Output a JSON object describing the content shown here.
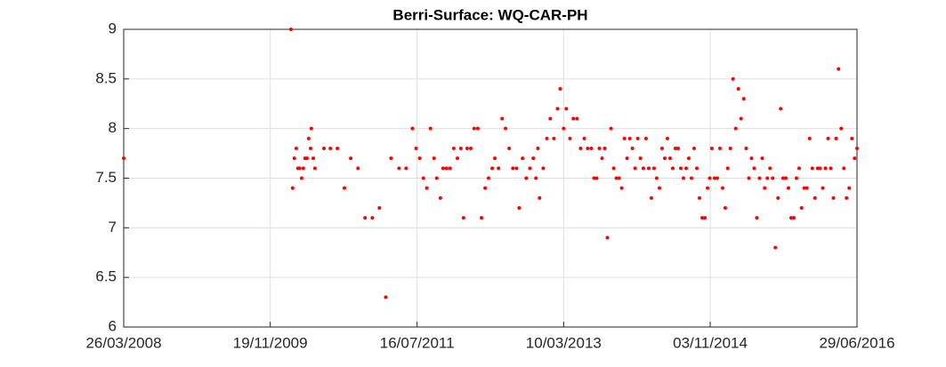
{
  "chart_data": {
    "type": "scatter",
    "title": "Berri-Surface: WQ-CAR-PH",
    "color": "#ff0000",
    "grid": true,
    "x": [
      "2008-03-26",
      "2010-02-12",
      "2010-02-19",
      "2010-02-26",
      "2010-03-06",
      "2010-03-13",
      "2010-03-20",
      "2010-03-28",
      "2010-04-04",
      "2010-04-11",
      "2010-04-19",
      "2010-04-26",
      "2010-05-04",
      "2010-05-07",
      "2010-05-15",
      "2010-05-22",
      "2010-06-28",
      "2010-07-24",
      "2010-08-22",
      "2010-09-20",
      "2010-10-16",
      "2010-11-15",
      "2010-12-14",
      "2011-01-13",
      "2011-02-11",
      "2011-03-09",
      "2011-03-31",
      "2011-05-03",
      "2011-06-01",
      "2011-06-27",
      "2011-07-12",
      "2011-07-27",
      "2011-08-11",
      "2011-08-25",
      "2011-09-09",
      "2011-09-24",
      "2011-10-05",
      "2011-10-20",
      "2011-10-31",
      "2011-11-14",
      "2011-11-29",
      "2011-12-14",
      "2011-12-29",
      "2012-01-12",
      "2012-01-23",
      "2012-02-07",
      "2012-02-22",
      "2012-03-07",
      "2012-03-22",
      "2012-04-06",
      "2012-04-21",
      "2012-05-05",
      "2012-05-20",
      "2012-05-31",
      "2012-06-15",
      "2012-06-30",
      "2012-07-14",
      "2012-07-29",
      "2012-08-13",
      "2012-08-28",
      "2012-09-08",
      "2012-09-22",
      "2012-10-07",
      "2012-10-22",
      "2012-11-05",
      "2012-11-16",
      "2012-11-24",
      "2012-12-01",
      "2012-12-16",
      "2012-12-31",
      "2013-01-14",
      "2013-01-29",
      "2013-02-13",
      "2013-02-24",
      "2013-03-10",
      "2013-03-21",
      "2013-04-05",
      "2013-04-19",
      "2013-05-04",
      "2013-05-19",
      "2013-06-03",
      "2013-06-17",
      "2013-07-02",
      "2013-07-13",
      "2013-07-24",
      "2013-08-04",
      "2013-08-15",
      "2013-08-26",
      "2013-09-06",
      "2013-09-21",
      "2013-10-02",
      "2013-10-13",
      "2013-10-24",
      "2013-11-04",
      "2013-11-15",
      "2013-11-26",
      "2013-12-07",
      "2013-12-18",
      "2013-12-29",
      "2014-01-09",
      "2014-01-20",
      "2014-02-01",
      "2014-02-12",
      "2014-02-23",
      "2014-03-06",
      "2014-03-17",
      "2014-03-28",
      "2014-04-08",
      "2014-04-19",
      "2014-04-30",
      "2014-05-11",
      "2014-05-22",
      "2014-06-02",
      "2014-06-13",
      "2014-06-24",
      "2014-07-05",
      "2014-07-16",
      "2014-07-27",
      "2014-08-07",
      "2014-08-18",
      "2014-08-29",
      "2014-09-09",
      "2014-09-20",
      "2014-10-01",
      "2014-10-12",
      "2014-10-23",
      "2014-11-01",
      "2014-11-10",
      "2014-11-21",
      "2014-12-02",
      "2014-12-13",
      "2014-12-24",
      "2015-01-04",
      "2015-01-14",
      "2015-01-25",
      "2015-02-05",
      "2015-02-16",
      "2015-02-27",
      "2015-03-10",
      "2015-03-21",
      "2015-03-31",
      "2015-04-11",
      "2015-04-22",
      "2015-05-03",
      "2015-05-14",
      "2015-05-25",
      "2015-06-05",
      "2015-06-15",
      "2015-06-26",
      "2015-07-07",
      "2015-07-18",
      "2015-07-29",
      "2015-08-09",
      "2015-08-20",
      "2015-08-30",
      "2015-09-10",
      "2015-09-21",
      "2015-10-02",
      "2015-10-13",
      "2015-10-24",
      "2015-11-04",
      "2015-11-14",
      "2015-11-25",
      "2015-12-06",
      "2015-12-17",
      "2015-12-28",
      "2016-01-08",
      "2016-01-19",
      "2016-01-29",
      "2016-02-09",
      "2016-02-20",
      "2016-03-02",
      "2016-03-13",
      "2016-03-24",
      "2016-04-04",
      "2016-04-14",
      "2016-04-25",
      "2016-05-06",
      "2016-05-17",
      "2016-05-28",
      "2016-06-08",
      "2016-06-19",
      "2016-06-29"
    ],
    "values": [
      7.7,
      9.0,
      7.4,
      7.7,
      7.8,
      7.6,
      7.6,
      7.5,
      7.6,
      7.7,
      7.7,
      7.9,
      7.8,
      8.0,
      7.7,
      7.6,
      7.8,
      7.8,
      7.8,
      7.4,
      7.7,
      7.6,
      7.1,
      7.1,
      7.2,
      6.3,
      7.7,
      7.6,
      7.6,
      8.0,
      7.8,
      7.7,
      7.5,
      7.4,
      8.0,
      7.7,
      7.5,
      7.3,
      7.6,
      7.6,
      7.6,
      7.8,
      7.7,
      7.8,
      7.1,
      7.8,
      7.8,
      8.0,
      8.0,
      7.1,
      7.4,
      7.5,
      7.6,
      7.7,
      7.6,
      8.1,
      8.0,
      7.8,
      7.6,
      7.6,
      7.2,
      7.7,
      7.5,
      7.6,
      7.7,
      7.5,
      7.8,
      7.3,
      7.6,
      7.9,
      8.1,
      7.9,
      8.2,
      8.4,
      8.0,
      8.2,
      7.9,
      8.1,
      8.1,
      7.8,
      7.9,
      7.8,
      7.8,
      7.5,
      7.5,
      7.8,
      7.7,
      7.8,
      6.9,
      8.0,
      7.6,
      7.5,
      7.5,
      7.4,
      7.9,
      7.7,
      7.9,
      7.8,
      7.6,
      7.9,
      7.7,
      7.6,
      7.9,
      7.6,
      7.3,
      7.6,
      7.5,
      7.4,
      7.8,
      7.7,
      7.9,
      7.7,
      7.6,
      7.8,
      7.8,
      7.6,
      7.5,
      7.6,
      7.7,
      7.5,
      7.8,
      7.6,
      7.3,
      7.1,
      7.1,
      7.4,
      7.5,
      7.8,
      7.5,
      7.5,
      7.8,
      7.4,
      7.2,
      7.6,
      7.8,
      8.5,
      8.0,
      8.4,
      8.1,
      8.3,
      7.8,
      7.5,
      7.7,
      7.6,
      7.1,
      7.5,
      7.7,
      7.4,
      7.5,
      7.6,
      7.5,
      6.8,
      7.3,
      8.2,
      7.5,
      7.5,
      7.4,
      7.1,
      7.1,
      7.5,
      7.6,
      7.2,
      7.4,
      7.4,
      7.9,
      7.6,
      7.3,
      7.6,
      7.6,
      7.4,
      7.6,
      7.9,
      7.6,
      7.3,
      7.9,
      8.6,
      8.0,
      7.6,
      7.3,
      7.4,
      7.9,
      7.7,
      7.8
    ],
    "xlim": [
      "2008-03-26",
      "2016-06-29"
    ],
    "xticks": [
      {
        "value": "2008-03-26",
        "label": "26/03/2008"
      },
      {
        "value": "2009-11-19",
        "label": "19/11/2009"
      },
      {
        "value": "2011-07-16",
        "label": "16/07/2011"
      },
      {
        "value": "2013-03-10",
        "label": "10/03/2013"
      },
      {
        "value": "2014-11-03",
        "label": "03/11/2014"
      },
      {
        "value": "2016-06-29",
        "label": "29/06/2016"
      }
    ],
    "ylim": [
      6,
      9
    ],
    "yticks": [
      6,
      6.5,
      7,
      7.5,
      8,
      8.5,
      9
    ]
  }
}
